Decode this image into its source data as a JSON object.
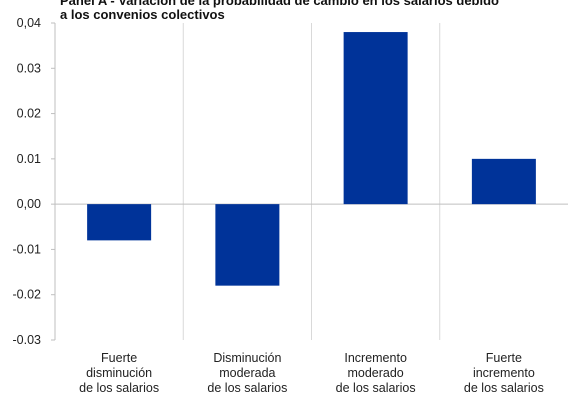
{
  "chart_data": {
    "type": "bar",
    "title_lines": [
      "Panel A - Variación de la probabilidad de cambio en los salarios debido",
      "a los convenios colectivos"
    ],
    "categories": [
      [
        "Fuerte",
        "disminución",
        "de los salarios"
      ],
      [
        "Disminución",
        "moderada",
        "de los salarios"
      ],
      [
        "Incremento",
        "moderado",
        "de los salarios"
      ],
      [
        "Fuerte",
        "incremento",
        "de los salarios"
      ]
    ],
    "values": [
      -0.008,
      -0.018,
      0.038,
      0.01
    ],
    "ylim": [
      -0.03,
      0.04
    ],
    "yticks": [
      0.04,
      0.03,
      0.02,
      0.01,
      0.0,
      -0.01,
      -0.02,
      -0.03
    ],
    "ytick_labels": [
      "0,04",
      "0.03",
      "0.02",
      "0.01",
      "0,00",
      "-0.01",
      "-0.02",
      "-0.03"
    ],
    "grid": "vertical separators",
    "bar_color": "#003399",
    "grid_color": "#d9d9d9",
    "axis_color": "#bfbfbf"
  }
}
